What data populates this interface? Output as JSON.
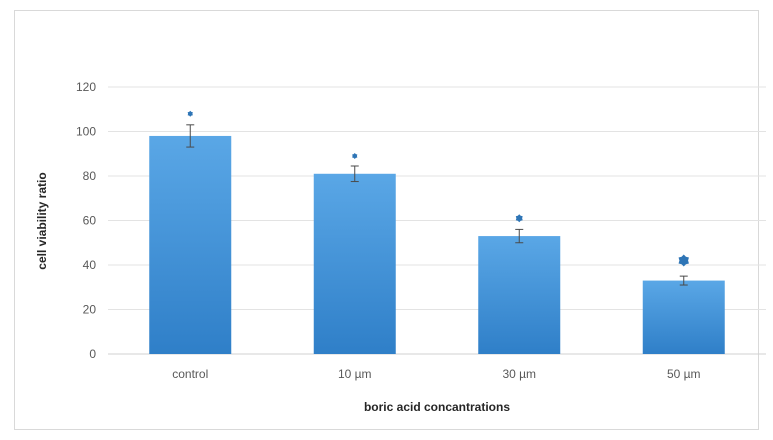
{
  "chart_data": {
    "type": "bar",
    "title": "",
    "categories": [
      "control",
      "10 µm",
      "30 µm",
      "50 µm"
    ],
    "series": [
      {
        "values": [
          98,
          81,
          53,
          33
        ],
        "error": [
          5,
          3.5,
          3,
          2
        ]
      }
    ],
    "significance_markers": [
      {
        "category": "control",
        "y": 108
      },
      {
        "category": "10 µm",
        "y": 89
      },
      {
        "category": "30 µm",
        "y": 61
      },
      {
        "category": "50 µm",
        "y": 42
      }
    ],
    "xlabel": "boric acid concantrations",
    "ylabel": "cell viability ratio",
    "ylim": [
      0,
      120
    ],
    "yticks": [
      0,
      20,
      40,
      60,
      80,
      100,
      120
    ],
    "grid": true,
    "legend": "none",
    "colors": {
      "bar_light": "#5aa7e6",
      "bar_dark": "#2f7fc8",
      "marker": "#2e75b6",
      "error_bar": "#4a4a4a",
      "grid": "#e3e3e3"
    }
  }
}
